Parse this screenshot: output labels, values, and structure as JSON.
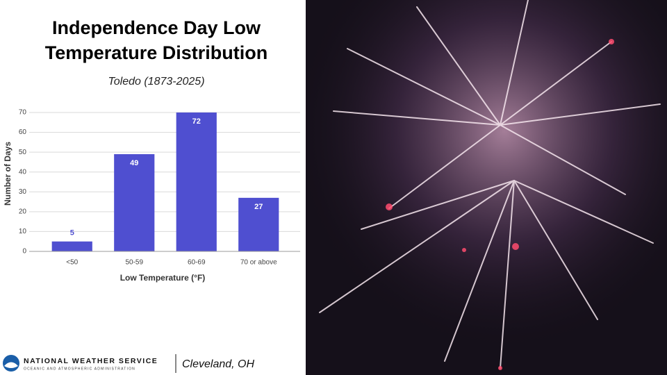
{
  "chart_data": {
    "type": "bar",
    "title_lines": [
      "Independence Day Low",
      "Temperature Distribution"
    ],
    "subtitle": "Toledo (1873-2025)",
    "x_label": "Low Temperature (°F)",
    "y_label": "Number of Days",
    "categories": [
      "<50",
      "50-59",
      "60-69",
      "70 or above"
    ],
    "values": [
      5,
      49,
      72,
      27
    ],
    "color": "#4f4fd0",
    "ylim": [
      0,
      70
    ],
    "yticks": [
      0,
      10,
      20,
      30,
      40,
      50,
      60,
      70
    ],
    "grid": true
  },
  "footer": {
    "agency": "NATIONAL WEATHER SERVICE",
    "subagency": "OCEANIC AND ATMOSPHERIC ADMINISTRATION",
    "office": "Cleveland, OH"
  }
}
